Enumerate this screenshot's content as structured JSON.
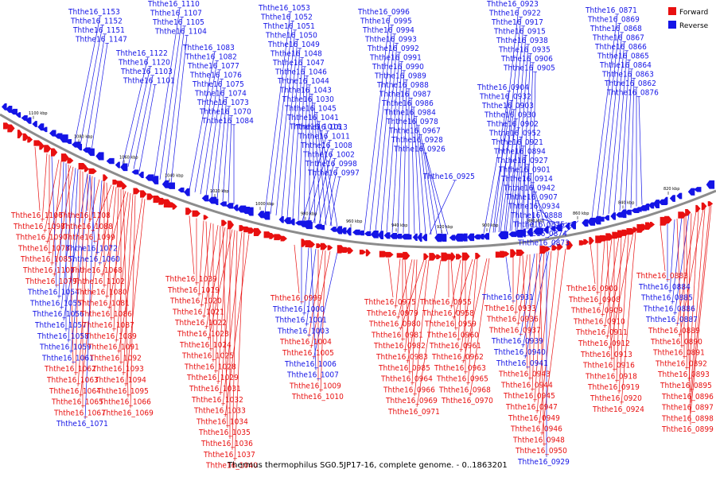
{
  "caption": "Thermus thermophilus SG0.5JP17-16, complete genome. - 0..1863201",
  "legend": [
    {
      "label": "Forward",
      "color": "#e81010"
    },
    {
      "label": "Reverse",
      "color": "#1414e6"
    }
  ],
  "colors": {
    "forward": "#e81010",
    "reverse": "#1414e6",
    "backbone": "#808080"
  },
  "axis_ticks": [
    "1100 kbp",
    "1080 kbp",
    "1060 kbp",
    "1040 kbp",
    "1020 kbp",
    "1000 kbp",
    "980 kbp",
    "960 kbp",
    "940 kbp",
    "920 kbp",
    "900 kbp",
    "880 kbp",
    "860 kbp",
    "840 kbp",
    "820 kbp"
  ],
  "reverse_labels": [
    "Ththe16_1153",
    "Ththe16_1152",
    "Ththe16_1151",
    "Ththe16_1147",
    "Ththe16_1110",
    "Ththe16_1107",
    "Ththe16_1105",
    "Ththe16_1104",
    "Ththe16_1122",
    "Ththe16_1120",
    "Ththe16_1103",
    "Ththe16_1101",
    "Ththe16_1083",
    "Ththe16_1082",
    "Ththe16_1077",
    "Ththe16_1076",
    "Ththe16_1075",
    "Ththe16_1074",
    "Ththe16_1073",
    "Ththe16_1070",
    "Ththe16_1084",
    "Ththe16_1053",
    "Ththe16_1052",
    "Ththe16_1051",
    "Ththe16_1050",
    "Ththe16_1049",
    "Ththe16_1048",
    "Ththe16_1047",
    "Ththe16_1046",
    "Ththe16_1044",
    "Ththe16_1043",
    "Ththe16_1030",
    "Ththe16_1045",
    "Ththe16_1041",
    "Ththe16_1016",
    "Ththe16_1013",
    "Ththe16_1011",
    "Ththe16_1008",
    "Ththe16_1002",
    "Ththe16_0998",
    "Ththe16_0997",
    "Ththe16_0996",
    "Ththe16_0995",
    "Ththe16_0994",
    "Ththe16_0993",
    "Ththe16_0992",
    "Ththe16_0991",
    "Ththe16_0990",
    "Ththe16_0989",
    "Ththe16_0988",
    "Ththe16_0987",
    "Ththe16_0986",
    "Ththe16_0984",
    "Ththe16_0978",
    "Ththe16_0967",
    "Ththe16_0928",
    "Ththe16_0926",
    "Ththe16_0925",
    "Ththe16_0923",
    "Ththe16_0922",
    "Ththe16_0917",
    "Ththe16_0915",
    "Ththe16_0938",
    "Ththe16_0935",
    "Ththe16_0906",
    "Ththe16_0905",
    "Ththe16_0904",
    "Ththe16_0932",
    "Ththe16_0903",
    "Ththe16_0930",
    "Ththe16_0902",
    "Ththe16_0952",
    "Ththe16_0921",
    "Ththe16_0894",
    "Ththe16_0927",
    "Ththe16_0901",
    "Ththe16_0914",
    "Ththe16_0942",
    "Ththe16_0907",
    "Ththe16_0934",
    "Ththe16_0888",
    "Ththe16_0875",
    "Ththe16_0874",
    "Ththe16_0873",
    "Ththe16_0871",
    "Ththe16_0869",
    "Ththe16_0868",
    "Ththe16_0867",
    "Ththe16_0866",
    "Ththe16_0865",
    "Ththe16_0864",
    "Ththe16_0863",
    "Ththe16_0862",
    "Ththe16_0876"
  ],
  "bottom_labels": [
    {
      "text": "Ththe16_1106",
      "strand": "forward"
    },
    {
      "text": "Ththe16_1108",
      "strand": "forward"
    },
    {
      "text": "Ththe16_1098",
      "strand": "forward"
    },
    {
      "text": "Ththe16_1088",
      "strand": "forward"
    },
    {
      "text": "Ththe16_1090",
      "strand": "forward"
    },
    {
      "text": "Ththe16_1099",
      "strand": "forward"
    },
    {
      "text": "Ththe16_1078",
      "strand": "forward"
    },
    {
      "text": "Ththe16_1072",
      "strand": "reverse"
    },
    {
      "text": "Ththe16_1085",
      "strand": "forward"
    },
    {
      "text": "Ththe16_1060",
      "strand": "reverse"
    },
    {
      "text": "Ththe16_1100",
      "strand": "forward"
    },
    {
      "text": "Ththe16_1068",
      "strand": "forward"
    },
    {
      "text": "Ththe16_1079",
      "strand": "forward"
    },
    {
      "text": "Ththe16_1102",
      "strand": "forward"
    },
    {
      "text": "Ththe16_1054",
      "strand": "reverse"
    },
    {
      "text": "Ththe16_1080",
      "strand": "forward"
    },
    {
      "text": "Ththe16_1055",
      "strand": "reverse"
    },
    {
      "text": "Ththe16_1081",
      "strand": "forward"
    },
    {
      "text": "Ththe16_1056",
      "strand": "reverse"
    },
    {
      "text": "Ththe16_1086",
      "strand": "forward"
    },
    {
      "text": "Ththe16_1057",
      "strand": "reverse"
    },
    {
      "text": "Ththe16_1087",
      "strand": "forward"
    },
    {
      "text": "Ththe16_1058",
      "strand": "reverse"
    },
    {
      "text": "Ththe16_1089",
      "strand": "forward"
    },
    {
      "text": "Ththe16_1059",
      "strand": "reverse"
    },
    {
      "text": "Ththe16_1091",
      "strand": "forward"
    },
    {
      "text": "Ththe16_1061",
      "strand": "reverse"
    },
    {
      "text": "Ththe16_1092",
      "strand": "forward"
    },
    {
      "text": "Ththe16_1062",
      "strand": "forward"
    },
    {
      "text": "Ththe16_1093",
      "strand": "forward"
    },
    {
      "text": "Ththe16_1063",
      "strand": "forward"
    },
    {
      "text": "Ththe16_1094",
      "strand": "forward"
    },
    {
      "text": "Ththe16_1064",
      "strand": "forward"
    },
    {
      "text": "Ththe16_1095",
      "strand": "forward"
    },
    {
      "text": "Ththe16_1065",
      "strand": "forward"
    },
    {
      "text": "Ththe16_1066",
      "strand": "forward"
    },
    {
      "text": "Ththe16_1067",
      "strand": "forward"
    },
    {
      "text": "Ththe16_1069",
      "strand": "forward"
    },
    {
      "text": "Ththe16_1071",
      "strand": "reverse"
    },
    {
      "text": "Ththe16_1039",
      "strand": "forward"
    },
    {
      "text": "Ththe16_1019",
      "strand": "forward"
    },
    {
      "text": "Ththe16_1020",
      "strand": "forward"
    },
    {
      "text": "Ththe16_1021",
      "strand": "forward"
    },
    {
      "text": "Ththe16_1022",
      "strand": "forward"
    },
    {
      "text": "Ththe16_1023",
      "strand": "forward"
    },
    {
      "text": "Ththe16_1024",
      "strand": "forward"
    },
    {
      "text": "Ththe16_1025",
      "strand": "forward"
    },
    {
      "text": "Ththe16_1028",
      "strand": "forward"
    },
    {
      "text": "Ththe16_1029",
      "strand": "forward"
    },
    {
      "text": "Ththe16_1031",
      "strand": "forward"
    },
    {
      "text": "Ththe16_1032",
      "strand": "forward"
    },
    {
      "text": "Ththe16_1033",
      "strand": "forward"
    },
    {
      "text": "Ththe16_1034",
      "strand": "forward"
    },
    {
      "text": "Ththe16_1035",
      "strand": "forward"
    },
    {
      "text": "Ththe16_1036",
      "strand": "forward"
    },
    {
      "text": "Ththe16_1037",
      "strand": "forward"
    },
    {
      "text": "Ththe16_1040",
      "strand": "forward"
    },
    {
      "text": "Ththe16_0999",
      "strand": "forward"
    },
    {
      "text": "Ththe16_1000",
      "strand": "reverse"
    },
    {
      "text": "Ththe16_1001",
      "strand": "reverse"
    },
    {
      "text": "Ththe16_1003",
      "strand": "reverse"
    },
    {
      "text": "Ththe16_1004",
      "strand": "forward"
    },
    {
      "text": "Ththe16_1005",
      "strand": "forward"
    },
    {
      "text": "Ththe16_1006",
      "strand": "reverse"
    },
    {
      "text": "Ththe16_1007",
      "strand": "reverse"
    },
    {
      "text": "Ththe16_1009",
      "strand": "forward"
    },
    {
      "text": "Ththe16_1010",
      "strand": "forward"
    },
    {
      "text": "Ththe16_0975",
      "strand": "forward"
    },
    {
      "text": "Ththe16_0955",
      "strand": "forward"
    },
    {
      "text": "Ththe16_0979",
      "strand": "forward"
    },
    {
      "text": "Ththe16_0958",
      "strand": "forward"
    },
    {
      "text": "Ththe16_0980",
      "strand": "forward"
    },
    {
      "text": "Ththe16_0959",
      "strand": "forward"
    },
    {
      "text": "Ththe16_0981",
      "strand": "forward"
    },
    {
      "text": "Ththe16_0960",
      "strand": "forward"
    },
    {
      "text": "Ththe16_0982",
      "strand": "forward"
    },
    {
      "text": "Ththe16_0961",
      "strand": "forward"
    },
    {
      "text": "Ththe16_0983",
      "strand": "forward"
    },
    {
      "text": "Ththe16_0962",
      "strand": "forward"
    },
    {
      "text": "Ththe16_0985",
      "strand": "forward"
    },
    {
      "text": "Ththe16_0963",
      "strand": "forward"
    },
    {
      "text": "Ththe16_0964",
      "strand": "forward"
    },
    {
      "text": "Ththe16_0965",
      "strand": "forward"
    },
    {
      "text": "Ththe16_0966",
      "strand": "forward"
    },
    {
      "text": "Ththe16_0968",
      "strand": "forward"
    },
    {
      "text": "Ththe16_0969",
      "strand": "forward"
    },
    {
      "text": "Ththe16_0970",
      "strand": "forward"
    },
    {
      "text": "Ththe16_0971",
      "strand": "forward"
    },
    {
      "text": "Ththe16_0931",
      "strand": "reverse"
    },
    {
      "text": "Ththe16_0933",
      "strand": "forward"
    },
    {
      "text": "Ththe16_0936",
      "strand": "forward"
    },
    {
      "text": "Ththe16_0937",
      "strand": "forward"
    },
    {
      "text": "Ththe16_0939",
      "strand": "reverse"
    },
    {
      "text": "Ththe16_0940",
      "strand": "reverse"
    },
    {
      "text": "Ththe16_0941",
      "strand": "reverse"
    },
    {
      "text": "Ththe16_0943",
      "strand": "forward"
    },
    {
      "text": "Ththe16_0944",
      "strand": "forward"
    },
    {
      "text": "Ththe16_0945",
      "strand": "forward"
    },
    {
      "text": "Ththe16_0947",
      "strand": "forward"
    },
    {
      "text": "Ththe16_0949",
      "strand": "forward"
    },
    {
      "text": "Ththe16_0946",
      "strand": "forward"
    },
    {
      "text": "Ththe16_0948",
      "strand": "forward"
    },
    {
      "text": "Ththe16_0950",
      "strand": "forward"
    },
    {
      "text": "Ththe16_0929",
      "strand": "reverse"
    },
    {
      "text": "Ththe16_0900",
      "strand": "forward"
    },
    {
      "text": "Ththe16_0908",
      "strand": "forward"
    },
    {
      "text": "Ththe16_0909",
      "strand": "forward"
    },
    {
      "text": "Ththe16_0910",
      "strand": "forward"
    },
    {
      "text": "Ththe16_0911",
      "strand": "forward"
    },
    {
      "text": "Ththe16_0912",
      "strand": "forward"
    },
    {
      "text": "Ththe16_0913",
      "strand": "forward"
    },
    {
      "text": "Ththe16_0916",
      "strand": "forward"
    },
    {
      "text": "Ththe16_0918",
      "strand": "forward"
    },
    {
      "text": "Ththe16_0919",
      "strand": "forward"
    },
    {
      "text": "Ththe16_0920",
      "strand": "forward"
    },
    {
      "text": "Ththe16_0924",
      "strand": "forward"
    },
    {
      "text": "Ththe16_0883",
      "strand": "forward"
    },
    {
      "text": "Ththe16_0884",
      "strand": "reverse"
    },
    {
      "text": "Ththe16_0885",
      "strand": "reverse"
    },
    {
      "text": "Ththe16_0886",
      "strand": "reverse"
    },
    {
      "text": "Ththe16_0887",
      "strand": "reverse"
    },
    {
      "text": "Ththe16_0889",
      "strand": "forward"
    },
    {
      "text": "Ththe16_0890",
      "strand": "forward"
    },
    {
      "text": "Ththe16_0891",
      "strand": "forward"
    },
    {
      "text": "Ththe16_0892",
      "strand": "forward"
    },
    {
      "text": "Ththe16_0893",
      "strand": "forward"
    },
    {
      "text": "Ththe16_0895",
      "strand": "forward"
    },
    {
      "text": "Ththe16_0896",
      "strand": "forward"
    },
    {
      "text": "Ththe16_0897",
      "strand": "forward"
    },
    {
      "text": "Ththe16_0898",
      "strand": "forward"
    },
    {
      "text": "Ththe16_0899",
      "strand": "forward"
    }
  ]
}
